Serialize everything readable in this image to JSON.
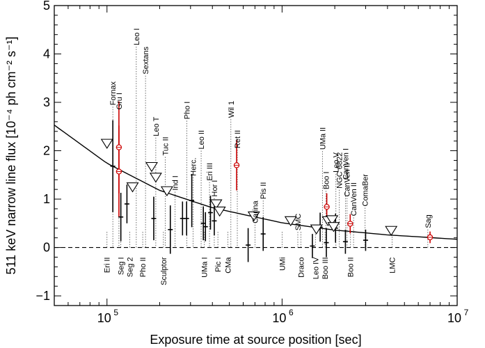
{
  "chart_data": {
    "type": "scatter",
    "title": "",
    "xlabel": "Exposure time at source position [sec]",
    "ylabel": "511 keV narrow line flux [10⁻⁴ ph cm⁻² s⁻¹]",
    "xscale": "log",
    "xlim": [
      50000,
      10000000
    ],
    "ylim": [
      -1.2,
      5
    ],
    "x_ticks": [
      {
        "value": 100000,
        "base": "10",
        "exp": "5"
      },
      {
        "value": 1000000,
        "base": "10",
        "exp": "6"
      },
      {
        "value": 10000000,
        "base": "10",
        "exp": "7"
      }
    ],
    "y_ticks": [
      {
        "value": -1,
        "label": "−1"
      },
      {
        "value": 0,
        "label": "0"
      },
      {
        "value": 1,
        "label": "1"
      },
      {
        "value": 2,
        "label": "2"
      },
      {
        "value": 3,
        "label": "3"
      },
      {
        "value": 4,
        "label": "4"
      },
      {
        "value": 5,
        "label": "5"
      }
    ],
    "colors": {
      "axis": "#000000",
      "highlight": "#cc0000",
      "guide": "#444444"
    },
    "zero_line": {
      "y": 0,
      "style": "dashed"
    },
    "sensitivity_curve": {
      "description_label": "",
      "points": [
        [
          50000,
          2.53
        ],
        [
          100000,
          1.74
        ],
        [
          200000,
          1.18
        ],
        [
          400000,
          0.82
        ],
        [
          1000000,
          0.51
        ],
        [
          2000000,
          0.36
        ],
        [
          4000000,
          0.26
        ],
        [
          10000000,
          0.17
        ]
      ]
    },
    "upper_limits": [
      {
        "name": "Eri II",
        "x": 100000,
        "y": 2.15
      },
      {
        "name": "Seg 2",
        "x": 140000,
        "y": 1.25
      },
      {
        "name": "Leo T",
        "x": 180000,
        "y": 1.67
      },
      {
        "name": "Tuc II",
        "x": 190000,
        "y": 1.45
      },
      {
        "name": "Sculptor",
        "x": 220000,
        "y": 1.17
      },
      {
        "name": "UMa I",
        "x": 420000,
        "y": 0.9
      },
      {
        "name": "CMa",
        "x": 440000,
        "y": 0.75
      },
      {
        "name": "Carina",
        "x": 690000,
        "y": 0.65
      },
      {
        "name": "SMC",
        "x": 1120000,
        "y": 0.55
      },
      {
        "name": "Leo IV",
        "x": 1570000,
        "y": 0.38
      },
      {
        "name": "Boo III",
        "x": 1830000,
        "y": 0.55
      },
      {
        "name": "NGC 6822",
        "x": 1930000,
        "y": 0.57
      },
      {
        "name": "CanVen I",
        "x": 1970000,
        "y": 0.43
      },
      {
        "name": "LMC",
        "x": 4200000,
        "y": 0.35
      }
    ],
    "measurements": [
      {
        "name": "Fornax",
        "x": 108000,
        "y": 1.68,
        "err": 0.95,
        "highlight": false
      },
      {
        "name": "Gru I",
        "x": 117000,
        "y": 2.07,
        "err": 0.95,
        "highlight": true
      },
      {
        "name": "Leo I",
        "x": 117000,
        "y": 1.57,
        "err": 0.95,
        "highlight": true
      },
      {
        "name": "Seg I",
        "x": 120000,
        "y": 0.63,
        "err": 0.5,
        "highlight": false
      },
      {
        "name": "Sextans",
        "x": 130000,
        "y": 0.9,
        "err": 0.4,
        "highlight": false
      },
      {
        "name": "Pho II",
        "x": 185000,
        "y": 0.6,
        "err": 0.45,
        "highlight": false
      },
      {
        "name": "Ind I",
        "x": 270000,
        "y": 0.6,
        "err": 0.35,
        "highlight": false
      },
      {
        "name": "Pho I",
        "x": 285000,
        "y": 0.6,
        "err": 0.35,
        "highlight": false
      },
      {
        "name": "Leo II",
        "x": 305000,
        "y": 0.97,
        "err": 0.55,
        "highlight": false
      },
      {
        "name": "Herc.",
        "x": 230000,
        "y": 0.37,
        "err": 0.5,
        "highlight": false
      },
      {
        "name": "Eri III",
        "x": 355000,
        "y": 0.5,
        "err": 0.35,
        "highlight": false
      },
      {
        "name": "Hor I",
        "x": 365000,
        "y": 0.43,
        "err": 0.3,
        "highlight": false
      },
      {
        "name": "Pic I",
        "x": 390000,
        "y": 0.72,
        "err": 0.35,
        "highlight": false
      },
      {
        "name": "Wil 1",
        "x": 410000,
        "y": 0.55,
        "err": 0.3,
        "highlight": false
      },
      {
        "name": "Ret II",
        "x": 550000,
        "y": 1.7,
        "err": 0.52,
        "highlight": true
      },
      {
        "name": "Pis II",
        "x": 640000,
        "y": 0.05,
        "err": 0.35,
        "highlight": false
      },
      {
        "name": "UMi",
        "x": 780000,
        "y": 0.28,
        "err": 0.35,
        "highlight": false
      },
      {
        "name": "Draco",
        "x": 1490000,
        "y": 0.03,
        "err": 0.25,
        "highlight": false
      },
      {
        "name": "UMa II",
        "x": 1650000,
        "y": 0.42,
        "err": 0.3,
        "highlight": false
      },
      {
        "name": "Boo I",
        "x": 1800000,
        "y": 0.84,
        "err": 0.28,
        "highlight": true
      },
      {
        "name": "Leo V",
        "x": 1790000,
        "y": 0.1,
        "err": 0.3,
        "highlight": false
      },
      {
        "name": "CanVen II",
        "x": 2020000,
        "y": 0.4,
        "err": 0.3,
        "highlight": false
      },
      {
        "name": "Boo II",
        "x": 2300000,
        "y": 0.12,
        "err": 0.25,
        "highlight": false
      },
      {
        "name": "ComaBer",
        "x": 2450000,
        "y": 0.49,
        "err": 0.2,
        "highlight": true
      },
      {
        "name": "CanVen II b",
        "x": 3000000,
        "y": 0.15,
        "err": 0.22,
        "highlight": false
      },
      {
        "name": "Sag",
        "x": 7000000,
        "y": 0.21,
        "err": 0.12,
        "highlight": true
      }
    ],
    "labels_top": [
      {
        "text": "Fornax",
        "x": 108000,
        "ly": 2.94
      },
      {
        "text": "Gru I",
        "x": 117000,
        "ly": 2.85
      },
      {
        "text": "Leo I",
        "x": 147000,
        "ly": 4.18
      },
      {
        "text": "Sextans",
        "x": 166000,
        "ly": 3.58
      },
      {
        "text": "Leo T",
        "x": 190000,
        "ly": 2.3
      },
      {
        "text": "Tuc II",
        "x": 215000,
        "ly": 1.9
      },
      {
        "text": "Ind I",
        "x": 245000,
        "ly": 1.18
      },
      {
        "text": "Pho I",
        "x": 286000,
        "ly": 2.65
      },
      {
        "text": "Herc.",
        "x": 310000,
        "ly": 1.48
      },
      {
        "text": "Leo II",
        "x": 345000,
        "ly": 2.03
      },
      {
        "text": "Eri III",
        "x": 385000,
        "ly": 1.38
      },
      {
        "text": "Hor I",
        "x": 410000,
        "ly": 1.05
      },
      {
        "text": "Wil 1",
        "x": 510000,
        "ly": 2.68
      },
      {
        "text": "Ret II",
        "x": 555000,
        "ly": 2.05
      },
      {
        "text": "Carina",
        "x": 700000,
        "ly": 0.5
      },
      {
        "text": "Pis II",
        "x": 780000,
        "ly": 1.0
      },
      {
        "text": "SMC",
        "x": 1230000,
        "ly": 0.35
      },
      {
        "text": "UMa II",
        "x": 1700000,
        "ly": 2.02
      },
      {
        "text": "Boo I",
        "x": 1780000,
        "ly": 1.2
      },
      {
        "text": "Leo V",
        "x": 2030000,
        "ly": 1.55
      },
      {
        "text": "NGC 6822",
        "x": 2120000,
        "ly": 1.22
      },
      {
        "text": "CanVen I",
        "x": 2300000,
        "ly": 1.4
      },
      {
        "text": "CanVen II",
        "x": 2350000,
        "ly": 1.05
      },
      {
        "text": "CanVen II",
        "x": 2560000,
        "ly": 0.65
      },
      {
        "text": "ComaBer",
        "x": 2980000,
        "ly": 0.85
      },
      {
        "text": "Sag",
        "x": 6800000,
        "ly": 0.4
      }
    ],
    "labels_bottom": [
      {
        "text": "Eri II",
        "x": 100000,
        "ly": -0.2
      },
      {
        "text": "Seg I",
        "x": 120000,
        "ly": -0.2
      },
      {
        "text": "Seg 2",
        "x": 135000,
        "ly": -0.2
      },
      {
        "text": "Pho II",
        "x": 160000,
        "ly": -0.2
      },
      {
        "text": "Sculptor",
        "x": 210000,
        "ly": -0.2
      },
      {
        "text": "UMa I",
        "x": 360000,
        "ly": -0.2
      },
      {
        "text": "Pic I",
        "x": 430000,
        "ly": -0.2
      },
      {
        "text": "CMa",
        "x": 490000,
        "ly": -0.2
      },
      {
        "text": "UMi",
        "x": 1000000,
        "ly": -0.2
      },
      {
        "text": "Draco",
        "x": 1280000,
        "ly": -0.2
      },
      {
        "text": "Leo IV",
        "x": 1550000,
        "ly": -0.2
      },
      {
        "text": "Boo III",
        "x": 1760000,
        "ly": -0.2
      },
      {
        "text": "Boo II",
        "x": 2460000,
        "ly": -0.2
      },
      {
        "text": "LMC",
        "x": 4250000,
        "ly": -0.2
      }
    ]
  }
}
